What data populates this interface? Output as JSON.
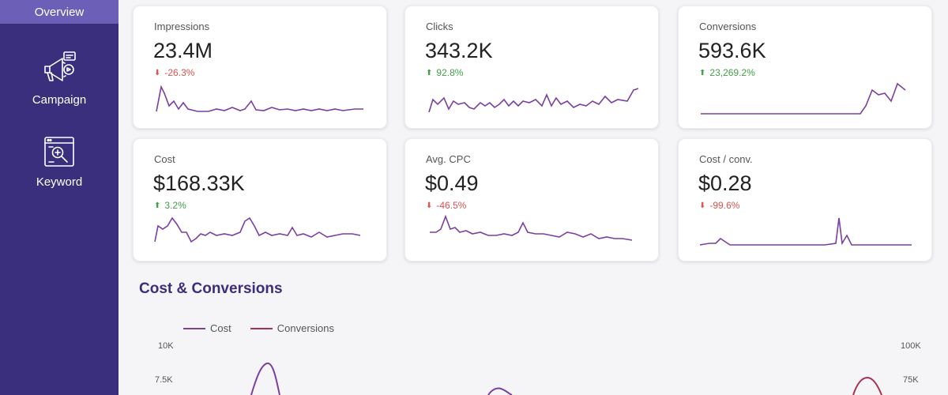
{
  "sidebar": {
    "active_item": "Overview",
    "items": [
      {
        "label": "Campaign",
        "icon": "megaphone-icon"
      },
      {
        "label": "Keyword",
        "icon": "keyword-search-icon"
      }
    ]
  },
  "metrics": [
    {
      "label": "Impressions",
      "value": "23.4M",
      "change": "-26.3%",
      "direction": "down"
    },
    {
      "label": "Clicks",
      "value": "343.2K",
      "change": "92.8%",
      "direction": "up"
    },
    {
      "label": "Conversions",
      "value": "593.6K",
      "change": "23,269.2%",
      "direction": "up"
    },
    {
      "label": "Cost",
      "value": "$168.33K",
      "change": "3.2%",
      "direction": "up"
    },
    {
      "label": "Avg. CPC",
      "value": "$0.49",
      "change": "-46.5%",
      "direction": "down"
    },
    {
      "label": "Cost / conv.",
      "value": "$0.28",
      "change": "-99.6%",
      "direction": "down"
    }
  ],
  "colors": {
    "sidebar": "#3a2f7d",
    "sidebar_active": "#6b5fb8",
    "sparkline": "#7b3fa0",
    "cost_series": "#7b3fa0",
    "conversions_series": "#a8324f",
    "down": "#d9534f",
    "up": "#43a047"
  },
  "chart_section": {
    "title": "Cost & Conversions"
  },
  "chart_data": {
    "type": "line",
    "series": [
      {
        "name": "Cost",
        "axis": "left"
      },
      {
        "name": "Conversions",
        "axis": "right"
      }
    ],
    "left_axis_ticks": [
      "10K",
      "7.5K"
    ],
    "right_axis_ticks": [
      "100K",
      "75K"
    ],
    "ylim_left": [
      0,
      10000
    ],
    "ylim_right": [
      0,
      100000
    ]
  }
}
